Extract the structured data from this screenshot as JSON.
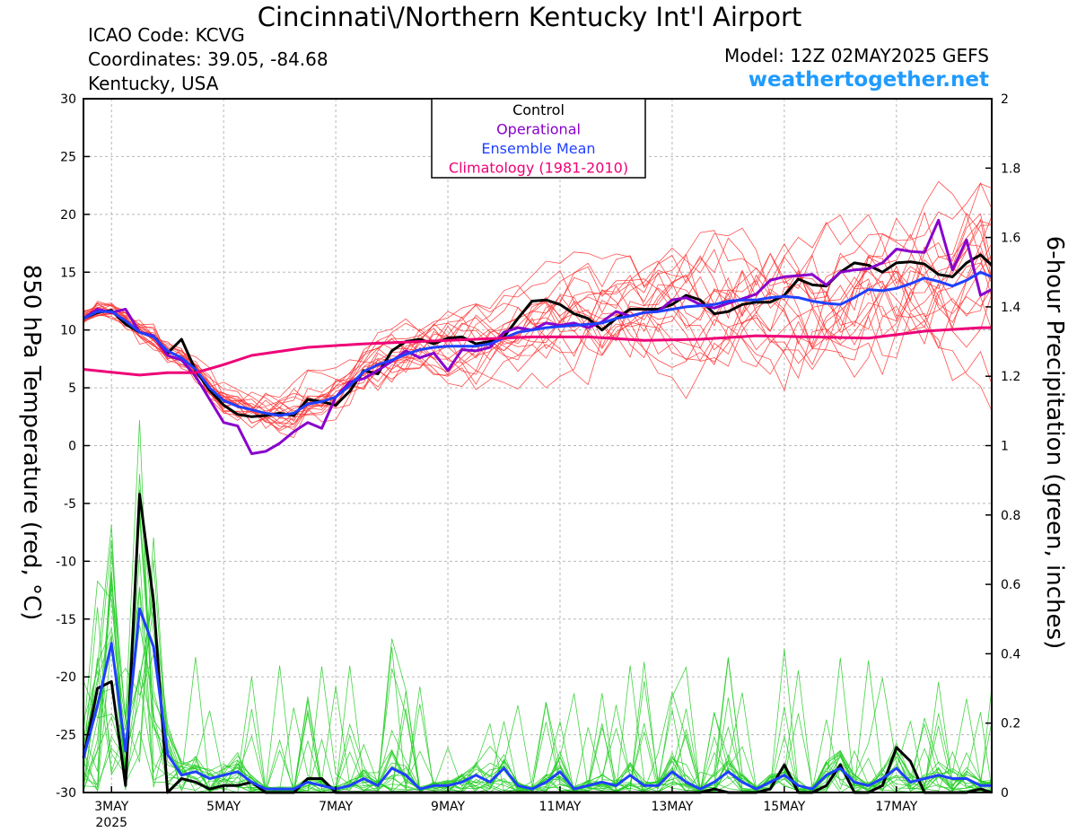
{
  "header": {
    "title": "Cincinnati\\/Northern Kentucky Int'l Airport",
    "icao": "ICAO Code: KCVG",
    "coords": "Coordinates: 39.05, -84.68",
    "region": "Kentucky, USA",
    "model": "Model: 12Z 02MAY2025 GEFS",
    "site": "weathertogether.net"
  },
  "colors": {
    "control": "#000000",
    "operational": "#8800cc",
    "ensemble_mean": "#2040ff",
    "climatology": "#ee0077",
    "members_temp": "#ff3030",
    "members_precip": "#22cc22",
    "site": "#1f9bff"
  },
  "chart_data": {
    "type": "line",
    "xlabel": "",
    "ylabel": "850 hPa Temperature (red, °C)",
    "ylabel_right": "6-hour Precipitation (green, inches)",
    "xlim": [
      0,
      16.2
    ],
    "ylim": [
      -30,
      30
    ],
    "ylim_right": [
      0,
      2
    ],
    "yticks": [
      30,
      25,
      20,
      15,
      10,
      5,
      0,
      -5,
      -10,
      -15,
      -20,
      -25,
      -30
    ],
    "yticks_right": [
      2,
      1.8,
      1.6,
      1.4,
      1.2,
      1,
      0.8,
      0.6,
      0.4,
      0.2,
      0
    ],
    "ytick_labels_right": [
      "2",
      "1.8",
      "1.6",
      "1.4",
      "1.2",
      "1",
      "0.8",
      "0.6",
      "0.4",
      "0.2",
      "0"
    ],
    "x_ticks": [
      {
        "x": 0.5,
        "label": "3MAY",
        "sub": "2025"
      },
      {
        "x": 2.5,
        "label": "5MAY",
        "sub": ""
      },
      {
        "x": 4.5,
        "label": "7MAY",
        "sub": ""
      },
      {
        "x": 6.5,
        "label": "9MAY",
        "sub": ""
      },
      {
        "x": 8.5,
        "label": "11MAY",
        "sub": ""
      },
      {
        "x": 10.5,
        "label": "13MAY",
        "sub": ""
      },
      {
        "x": 12.5,
        "label": "15MAY",
        "sub": ""
      },
      {
        "x": 14.5,
        "label": "17MAY",
        "sub": ""
      }
    ],
    "grid": true,
    "legend": {
      "placement": "top-center",
      "entries": [
        "Control",
        "Operational",
        "Ensemble Mean",
        "Climatology (1981-2010)"
      ]
    },
    "series": [
      {
        "name": "Control",
        "axis": "temperature",
        "x": [
          0,
          0.25,
          0.5,
          0.75,
          1,
          1.25,
          1.5,
          1.75,
          2,
          2.25,
          2.5,
          2.75,
          3,
          3.25,
          3.5,
          3.75,
          4,
          4.25,
          4.5,
          4.75,
          5,
          5.25,
          5.5,
          5.75,
          6,
          6.25,
          6.5,
          6.75,
          7,
          7.25,
          7.5,
          7.75,
          8,
          8.25,
          8.5,
          8.75,
          9,
          9.25,
          9.5,
          9.75,
          10,
          10.25,
          10.5,
          10.75,
          11,
          11.25,
          11.5,
          11.75,
          12,
          12.25,
          12.5,
          12.75,
          13,
          13.25,
          13.5,
          13.75,
          14,
          14.25,
          14.5,
          14.75,
          15,
          15.25,
          15.5,
          15.75,
          16,
          16.2
        ],
        "values": [
          11,
          11.5,
          11.7,
          10.5,
          9.8,
          9.5,
          8,
          9.2,
          6.5,
          4.8,
          3.5,
          2.7,
          2.5,
          2.6,
          2.8,
          2.6,
          4,
          3.8,
          3.5,
          4.7,
          6.5,
          6.2,
          8.2,
          9,
          9.2,
          8.8,
          9.3,
          9.4,
          8.8,
          9,
          9.4,
          11,
          12.5,
          12.6,
          12.2,
          11.4,
          11,
          10,
          11,
          11.8,
          11.8,
          11.8,
          12.2,
          13,
          12.6,
          11.4,
          11.6,
          12.2,
          12.4,
          12.4,
          13,
          14.4,
          13.9,
          13.8,
          15,
          15.8,
          15.6,
          15,
          15.8,
          15.9,
          15.7,
          14.8,
          14.6,
          15.8,
          16.5,
          15.6
        ]
      },
      {
        "name": "Operational",
        "axis": "temperature",
        "x": [
          0,
          0.25,
          0.5,
          0.75,
          1,
          1.25,
          1.5,
          1.75,
          2,
          2.25,
          2.5,
          2.75,
          3,
          3.25,
          3.5,
          3.75,
          4,
          4.25,
          4.5,
          4.75,
          5,
          5.25,
          5.5,
          5.75,
          6,
          6.25,
          6.5,
          6.75,
          7,
          7.25,
          7.5,
          7.75,
          8,
          8.25,
          8.5,
          8.75,
          9,
          9.25,
          9.5,
          9.75,
          10,
          10.25,
          10.5,
          10.75,
          11,
          11.25,
          11.5,
          11.75,
          12,
          12.25,
          12.5,
          12.75,
          13,
          13.25,
          13.5,
          13.75,
          14,
          14.25,
          14.5,
          14.75,
          15,
          15.25,
          15.5,
          15.75,
          16,
          16.2
        ],
        "values": [
          11,
          11.8,
          11.5,
          11.8,
          9.8,
          9.5,
          7.8,
          7.4,
          6,
          4,
          2,
          1.7,
          -0.7,
          -0.5,
          0.2,
          1.2,
          2,
          1.5,
          4.2,
          5.5,
          5.8,
          6.5,
          7.3,
          8.2,
          7.6,
          8,
          6.5,
          8.3,
          8.2,
          8.5,
          9.8,
          10.2,
          10,
          10.6,
          10.4,
          10.6,
          10.2,
          10.7,
          11.6,
          11.2,
          11.5,
          11.6,
          12.6,
          12.8,
          12.2,
          11.9,
          12.3,
          12.7,
          13.1,
          14.3,
          14.6,
          14.7,
          14.8,
          13.9,
          15,
          15.2,
          15.3,
          15.8,
          17,
          16.8,
          16.7,
          19.5,
          15.2,
          17.8,
          13,
          13.5
        ]
      },
      {
        "name": "Ensemble Mean",
        "axis": "temperature",
        "x": [
          0,
          0.25,
          0.5,
          0.75,
          1,
          1.25,
          1.5,
          1.75,
          2,
          2.25,
          2.5,
          2.75,
          3,
          3.25,
          3.5,
          3.75,
          4,
          4.25,
          4.5,
          4.75,
          5,
          5.25,
          5.5,
          5.75,
          6,
          6.25,
          6.5,
          6.75,
          7,
          7.25,
          7.5,
          7.75,
          8,
          8.25,
          8.5,
          8.75,
          9,
          9.25,
          9.5,
          9.75,
          10,
          10.25,
          10.5,
          10.75,
          11,
          11.25,
          11.5,
          11.75,
          12,
          12.25,
          12.5,
          12.75,
          13,
          13.25,
          13.5,
          13.75,
          14,
          14.25,
          14.5,
          14.75,
          15,
          15.25,
          15.5,
          15.75,
          16,
          16.2
        ],
        "values": [
          11,
          11.6,
          11.6,
          10.8,
          9.8,
          9.4,
          8.2,
          7.6,
          6.6,
          5,
          3.9,
          3.4,
          3.1,
          2.8,
          2.6,
          2.8,
          3.6,
          3.8,
          4.2,
          5.2,
          6.4,
          7,
          7.4,
          7.9,
          8.3,
          8.5,
          8.6,
          8.6,
          8.6,
          8.8,
          9.3,
          9.8,
          10,
          10.2,
          10.3,
          10.4,
          10.5,
          10.6,
          11,
          11.2,
          11.5,
          11.6,
          11.8,
          12,
          12.1,
          12.2,
          12.5,
          12.6,
          12.6,
          12.8,
          12.9,
          12.8,
          12.5,
          12.3,
          12.2,
          12.8,
          13.5,
          13.4,
          13.6,
          14,
          14.5,
          14.2,
          13.8,
          14.3,
          15,
          14.6
        ]
      },
      {
        "name": "Climatology (1981-2010)",
        "axis": "temperature",
        "x": [
          0,
          1,
          1.5,
          2,
          2.5,
          3,
          4,
          5,
          6,
          7,
          8,
          9,
          10,
          11,
          12,
          13,
          14,
          15,
          16,
          16.2
        ],
        "values": [
          6.6,
          6.1,
          6.3,
          6.3,
          7,
          7.8,
          8.5,
          8.8,
          9,
          9.2,
          9.4,
          9.4,
          9.1,
          9.2,
          9.5,
          9.4,
          9.3,
          9.9,
          10.2,
          10.2
        ]
      },
      {
        "name": "Control",
        "axis": "precipitation",
        "x": [
          0,
          0.25,
          0.5,
          0.75,
          1,
          1.25,
          1.5,
          1.75,
          2,
          2.25,
          2.5,
          2.75,
          3,
          3.25,
          3.5,
          3.75,
          4,
          4.25,
          4.5,
          4.75,
          5,
          5.25,
          5.5,
          5.75,
          6,
          6.25,
          6.5,
          6.75,
          7,
          7.25,
          7.5,
          7.75,
          8,
          8.25,
          8.5,
          8.75,
          9,
          9.25,
          9.5,
          9.75,
          10,
          10.25,
          10.5,
          10.75,
          11,
          11.25,
          11.5,
          11.75,
          12,
          12.25,
          12.5,
          12.75,
          13,
          13.25,
          13.5,
          13.75,
          14,
          14.25,
          14.5,
          14.75,
          15,
          15.25,
          15.5,
          15.75,
          16,
          16.2
        ],
        "values": [
          0.1,
          0.3,
          0.32,
          0.02,
          0.86,
          0.55,
          0,
          0.04,
          0.03,
          0.01,
          0.02,
          0.02,
          0.03,
          0,
          0,
          0,
          0.04,
          0.04,
          0,
          0,
          0,
          0,
          0,
          0,
          0,
          0,
          0,
          0,
          0,
          0,
          0,
          0,
          0,
          0,
          0,
          0,
          0,
          0,
          0,
          0,
          0,
          0,
          0,
          0,
          0,
          0.01,
          0,
          0,
          0,
          0.01,
          0.08,
          0,
          0,
          0.02,
          0.08,
          0,
          0,
          0.02,
          0.13,
          0.09,
          0,
          0,
          0,
          0,
          0.01,
          0
        ]
      },
      {
        "name": "Ensemble Mean",
        "axis": "precipitation",
        "x": [
          0,
          0.25,
          0.5,
          0.75,
          1,
          1.25,
          1.5,
          1.75,
          2,
          2.25,
          2.5,
          2.75,
          3,
          3.25,
          3.5,
          3.75,
          4,
          4.25,
          4.5,
          4.75,
          5,
          5.25,
          5.5,
          5.75,
          6,
          6.25,
          6.5,
          6.75,
          7,
          7.25,
          7.5,
          7.75,
          8,
          8.25,
          8.5,
          8.75,
          9,
          9.25,
          9.5,
          9.75,
          10,
          10.25,
          10.5,
          10.75,
          11,
          11.25,
          11.5,
          11.75,
          12,
          12.25,
          12.5,
          12.75,
          13,
          13.25,
          13.5,
          13.75,
          14,
          14.25,
          14.5,
          14.75,
          15,
          15.25,
          15.5,
          15.75,
          16,
          16.2
        ],
        "values": [
          0.1,
          0.25,
          0.43,
          0.12,
          0.53,
          0.42,
          0.11,
          0.05,
          0.06,
          0.04,
          0.05,
          0.06,
          0.03,
          0.01,
          0.01,
          0.01,
          0.03,
          0.02,
          0.01,
          0.02,
          0.04,
          0.02,
          0.07,
          0.05,
          0.01,
          0.02,
          0.02,
          0.03,
          0.05,
          0.03,
          0.07,
          0.02,
          0.01,
          0.03,
          0.06,
          0.01,
          0.02,
          0.03,
          0.02,
          0.05,
          0.02,
          0.02,
          0.06,
          0.03,
          0.01,
          0.03,
          0.06,
          0.03,
          0.01,
          0.03,
          0.05,
          0.02,
          0.01,
          0.05,
          0.07,
          0.03,
          0.02,
          0.04,
          0.07,
          0.03,
          0.04,
          0.05,
          0.04,
          0.04,
          0.02,
          0.02
        ]
      }
    ]
  }
}
